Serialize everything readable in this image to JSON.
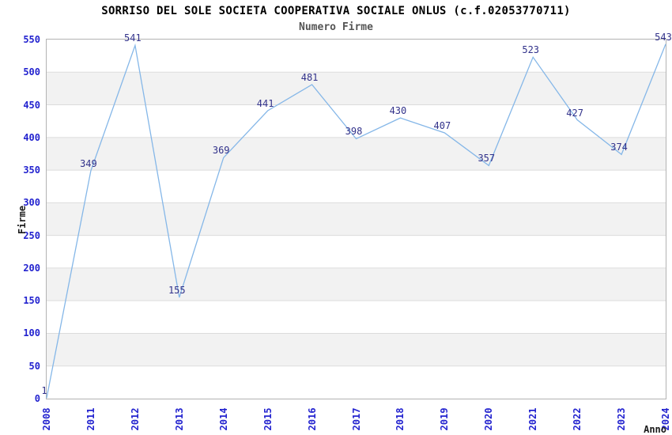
{
  "header": {
    "title": "SORRISO DEL SOLE SOCIETA COOPERATIVA SOCIALE ONLUS (c.f.02053770711)",
    "subtitle": "Numero Firme"
  },
  "chart_data": {
    "type": "line",
    "title": "SORRISO DEL SOLE SOCIETA COOPERATIVA SOCIALE ONLUS (c.f.02053770711)",
    "subtitle": "Numero Firme",
    "xlabel": "Anno",
    "ylabel": "Firme",
    "categories": [
      "2008",
      "2011",
      "2012",
      "2013",
      "2014",
      "2015",
      "2016",
      "2017",
      "2018",
      "2019",
      "2020",
      "2021",
      "2022",
      "2023",
      "2024"
    ],
    "values": [
      1,
      349,
      541,
      155,
      369,
      441,
      481,
      398,
      430,
      407,
      357,
      523,
      427,
      374,
      543
    ],
    "ylim": [
      0,
      550
    ],
    "ytick_step": 50,
    "grid": true,
    "legend": "none",
    "point_labels_visible": true,
    "colors": {
      "line": "#85b7e8",
      "tick_label": "#2323cf",
      "data_label": "#31318a",
      "title": "#000000",
      "subtitle": "#555555",
      "axis_title": "#1a1a1a",
      "band": "#f2f2f2",
      "gridline": "#dcdcdc",
      "plot_border": "#b3b3b3",
      "background": "#ffffff"
    }
  }
}
